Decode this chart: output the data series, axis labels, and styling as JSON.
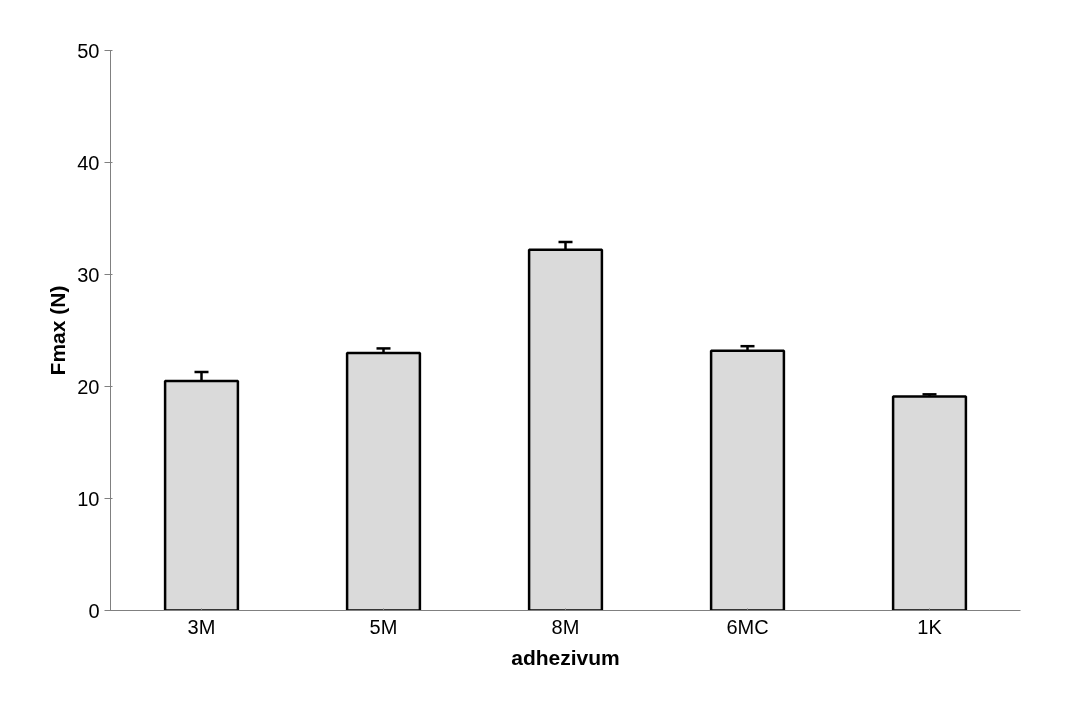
{
  "chart_data": {
    "type": "bar",
    "xlabel": "adhezivum",
    "ylabel": "Fmax (N)",
    "categories": [
      "3M",
      "5M",
      "8M",
      "6MC",
      "1K"
    ],
    "values": [
      20.5,
      23.0,
      32.2,
      23.2,
      19.1
    ],
    "errors": [
      0.8,
      0.4,
      0.7,
      0.4,
      0.2
    ],
    "color": "#dadada",
    "ylim": [
      0,
      50
    ],
    "yticks": [
      0,
      10,
      20,
      30,
      40,
      50
    ],
    "grid": false
  }
}
